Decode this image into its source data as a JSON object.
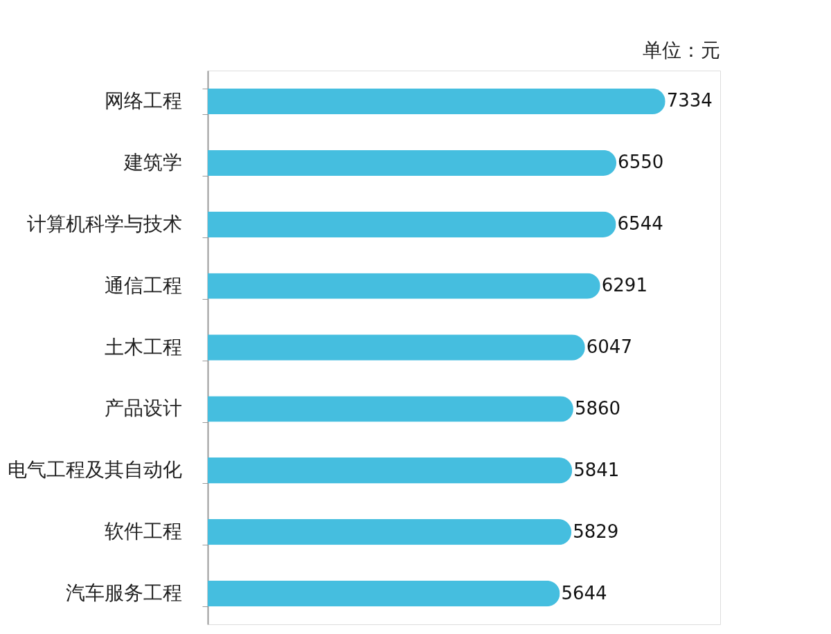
{
  "chart_data": {
    "type": "bar",
    "orientation": "horizontal",
    "categories": [
      "网络工程",
      "建筑学",
      "计算机科学与技术",
      "通信工程",
      "土木工程",
      "产品设计",
      "电气工程及其自动化",
      "软件工程",
      "汽车服务工程"
    ],
    "values": [
      7334,
      6550,
      6544,
      6291,
      6047,
      5860,
      5841,
      5829,
      5644
    ],
    "color": "#45bedf",
    "data_labels": true,
    "tick_labels": "y",
    "annotations": [
      "单位：元"
    ]
  }
}
